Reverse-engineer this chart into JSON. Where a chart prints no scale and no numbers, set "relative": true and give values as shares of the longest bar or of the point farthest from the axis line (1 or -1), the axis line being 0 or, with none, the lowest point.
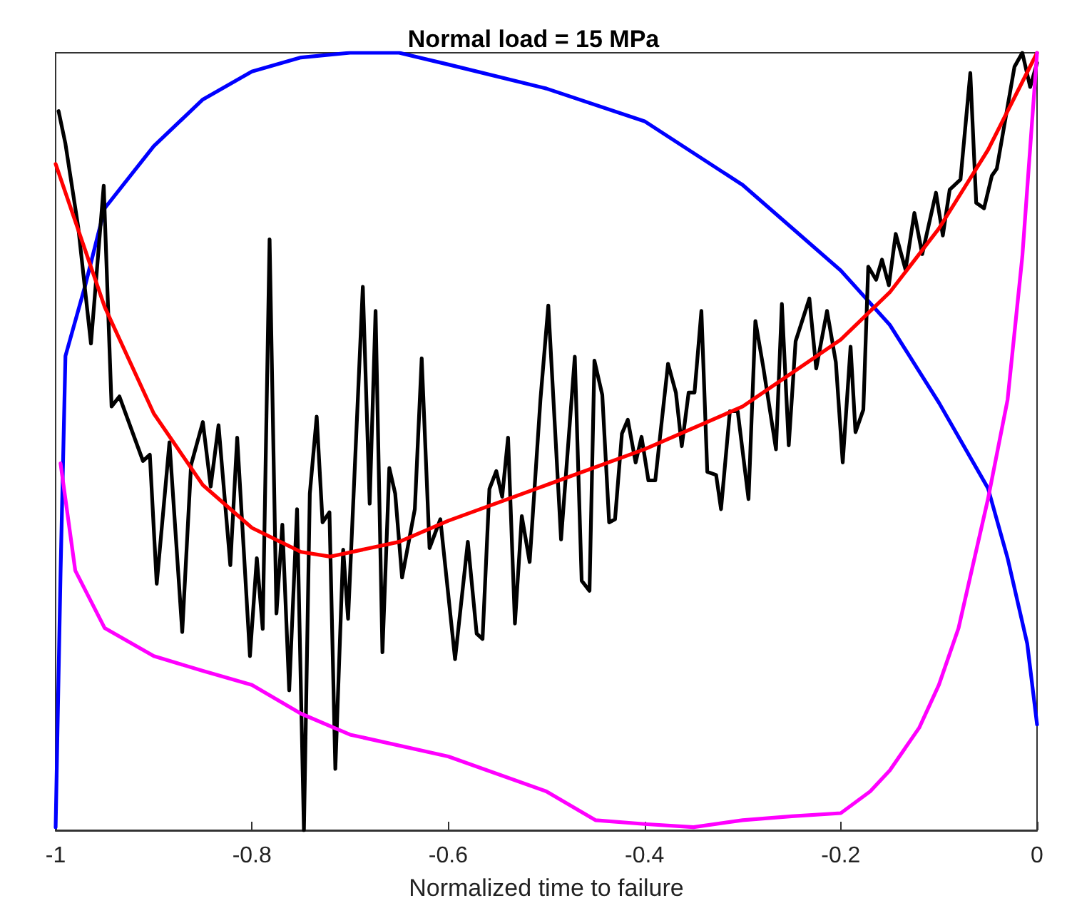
{
  "chart_data": {
    "type": "line",
    "title": "Normal load = 15 MPa",
    "xlabel": "Normalized time to failure",
    "relative": true,
    "xlim": [
      -1,
      0
    ],
    "xticks": [
      -1,
      -0.8,
      -0.6,
      -0.4,
      -0.2,
      0
    ],
    "grid": false,
    "marker": "none",
    "line_style": "solid",
    "series": [
      {
        "color": "#0000ff",
        "x": [
          -1,
          -0.995,
          -0.99,
          -0.97,
          -0.95,
          -0.9,
          -0.85,
          -0.8,
          -0.75,
          -0.7,
          -0.65,
          -0.6,
          -0.5,
          -0.4,
          -0.3,
          -0.2,
          -0.15,
          -0.1,
          -0.05,
          -0.03,
          -0.01,
          0
        ],
        "values": [
          0.004,
          0.33,
          0.61,
          0.7,
          0.8,
          0.88,
          0.94,
          0.976,
          0.994,
          1.0,
          1.0,
          0.985,
          0.954,
          0.912,
          0.83,
          0.72,
          0.65,
          0.55,
          0.44,
          0.35,
          0.24,
          0.136
        ]
      },
      {
        "color": "#000000",
        "x": [
          -0.997,
          -0.99,
          -0.977,
          -0.964,
          -0.951,
          -0.943,
          -0.935,
          -0.911,
          -0.904,
          -0.897,
          -0.884,
          -0.871,
          -0.862,
          -0.85,
          -0.842,
          -0.834,
          -0.822,
          -0.815,
          -0.802,
          -0.795,
          -0.789,
          -0.782,
          -0.775,
          -0.769,
          -0.762,
          -0.754,
          -0.747,
          -0.741,
          -0.734,
          -0.728,
          -0.721,
          -0.715,
          -0.707,
          -0.702,
          -0.687,
          -0.68,
          -0.674,
          -0.667,
          -0.66,
          -0.654,
          -0.647,
          -0.634,
          -0.627,
          -0.619,
          -0.608,
          -0.593,
          -0.58,
          -0.571,
          -0.565,
          -0.558,
          -0.551,
          -0.545,
          -0.539,
          -0.532,
          -0.525,
          -0.517,
          -0.506,
          -0.498,
          -0.485,
          -0.471,
          -0.464,
          -0.456,
          -0.451,
          -0.443,
          -0.436,
          -0.43,
          -0.423,
          -0.417,
          -0.409,
          -0.403,
          -0.396,
          -0.389,
          -0.376,
          -0.368,
          -0.362,
          -0.355,
          -0.349,
          -0.342,
          -0.336,
          -0.327,
          -0.322,
          -0.313,
          -0.305,
          -0.294,
          -0.287,
          -0.279,
          -0.266,
          -0.26,
          -0.253,
          -0.246,
          -0.232,
          -0.225,
          -0.214,
          -0.205,
          -0.198,
          -0.19,
          -0.185,
          -0.177,
          -0.172,
          -0.164,
          -0.158,
          -0.151,
          -0.144,
          -0.134,
          -0.125,
          -0.117,
          -0.103,
          -0.096,
          -0.089,
          -0.078,
          -0.068,
          -0.062,
          -0.054,
          -0.046,
          -0.041,
          -0.023,
          -0.015,
          -0.007,
          0
        ],
        "values": [
          0.925,
          0.883,
          0.776,
          0.626,
          0.829,
          0.545,
          0.558,
          0.475,
          0.483,
          0.317,
          0.499,
          0.255,
          0.47,
          0.525,
          0.442,
          0.521,
          0.341,
          0.505,
          0.224,
          0.35,
          0.259,
          0.76,
          0.279,
          0.393,
          0.18,
          0.413,
          0,
          0.433,
          0.532,
          0.396,
          0.409,
          0.079,
          0.361,
          0.272,
          0.699,
          0.42,
          0.668,
          0.229,
          0.466,
          0.433,
          0.325,
          0.413,
          0.607,
          0.363,
          0.4,
          0.22,
          0.371,
          0.253,
          0.246,
          0.439,
          0.462,
          0.429,
          0.505,
          0.266,
          0.404,
          0.345,
          0.554,
          0.675,
          0.374,
          0.609,
          0.321,
          0.308,
          0.604,
          0.56,
          0.396,
          0.4,
          0.51,
          0.528,
          0.473,
          0.506,
          0.45,
          0.45,
          0.6,
          0.563,
          0.494,
          0.563,
          0.563,
          0.668,
          0.461,
          0.457,
          0.413,
          0.539,
          0.539,
          0.426,
          0.655,
          0.596,
          0.49,
          0.677,
          0.495,
          0.629,
          0.684,
          0.594,
          0.668,
          0.602,
          0.473,
          0.622,
          0.512,
          0.541,
          0.725,
          0.708,
          0.734,
          0.701,
          0.767,
          0.721,
          0.794,
          0.741,
          0.82,
          0.765,
          0.824,
          0.837,
          0.974,
          0.807,
          0.8,
          0.842,
          0.851,
          0.982,
          1.0,
          0.956,
          0.987
        ]
      },
      {
        "color": "#ff0000",
        "x": [
          -1,
          -0.95,
          -0.9,
          -0.85,
          -0.8,
          -0.75,
          -0.72,
          -0.65,
          -0.6,
          -0.5,
          -0.4,
          -0.3,
          -0.2,
          -0.15,
          -0.1,
          -0.05,
          0
        ],
        "values": [
          0.857,
          0.673,
          0.536,
          0.444,
          0.389,
          0.358,
          0.352,
          0.371,
          0.398,
          0.444,
          0.49,
          0.545,
          0.631,
          0.692,
          0.774,
          0.875,
          1.0
        ]
      },
      {
        "color": "#ff00ff",
        "x": [
          -0.995,
          -0.98,
          -0.95,
          -0.9,
          -0.85,
          -0.8,
          -0.75,
          -0.7,
          -0.6,
          -0.5,
          -0.45,
          -0.4,
          -0.35,
          -0.3,
          -0.25,
          -0.2,
          -0.17,
          -0.15,
          -0.12,
          -0.1,
          -0.08,
          -0.05,
          -0.03,
          -0.015,
          0
        ],
        "values": [
          0.472,
          0.334,
          0.26,
          0.224,
          0.205,
          0.187,
          0.15,
          0.123,
          0.095,
          0.05,
          0.013,
          0.008,
          0.004,
          0.013,
          0.018,
          0.022,
          0.05,
          0.077,
          0.132,
          0.187,
          0.26,
          0.426,
          0.554,
          0.738,
          1.0
        ]
      }
    ]
  }
}
